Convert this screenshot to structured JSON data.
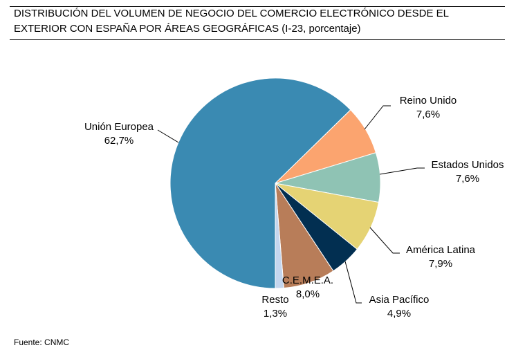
{
  "title": {
    "line1": "DISTRIBUCIÓN DEL VOLUMEN DE NEGOCIO DEL COMERCIO ELECTRÓNICO DESDE EL",
    "line2": "EXTERIOR CON ESPAÑA POR ÁREAS GEOGRÁFICAS (I-23, porcentaje)"
  },
  "source": "Fuente: CNMC",
  "chart_data": {
    "type": "pie",
    "title": "DISTRIBUCIÓN DEL VOLUMEN DE NEGOCIO DEL COMERCIO ELECTRÓNICO DESDE EL EXTERIOR CON ESPAÑA POR ÁREAS GEOGRÁFICAS (I-23, porcentaje)",
    "start_direction": "bottom",
    "direction": "clockwise",
    "slices": [
      {
        "name": "Unión Europea",
        "value": 62.7,
        "label": "62,7%",
        "color": "#3a8ab2"
      },
      {
        "name": "Reino Unido",
        "value": 7.6,
        "label": "7,6%",
        "color": "#fba46f"
      },
      {
        "name": "Estados Unidos",
        "value": 7.6,
        "label": "7,6%",
        "color": "#8fc3b4"
      },
      {
        "name": "América Latina",
        "value": 7.9,
        "label": "7,9%",
        "color": "#e5d374"
      },
      {
        "name": "Asia Pacífico",
        "value": 4.9,
        "label": "4,9%",
        "color": "#022f51"
      },
      {
        "name": "C.E.M.E.A.",
        "value": 8.0,
        "label": "8,0%",
        "color": "#b87d59"
      },
      {
        "name": "Resto",
        "value": 1.3,
        "label": "1,3%",
        "color": "#c4d6ee"
      }
    ]
  }
}
